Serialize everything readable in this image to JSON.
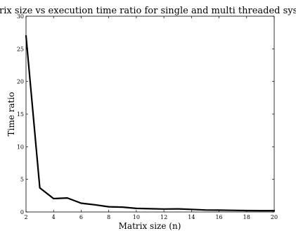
{
  "chart_data": {
    "type": "line",
    "title": "Matrix size vs execution time ratio for single and multi threaded systems",
    "xlabel": "Matrix size (n)",
    "ylabel": "Time ratio",
    "xlim": [
      2,
      20
    ],
    "ylim": [
      0,
      30
    ],
    "xticks": [
      "2",
      "4",
      "6",
      "8",
      "10",
      "12",
      "14",
      "16",
      "18",
      "20"
    ],
    "yticks": [
      "0",
      "5",
      "10",
      "15",
      "20",
      "25",
      "30"
    ],
    "grid": false,
    "legend": "none",
    "series": [
      {
        "color": "#000000",
        "x": [
          2,
          3,
          4,
          5,
          6,
          7,
          8,
          9,
          10,
          11,
          12,
          13,
          14,
          15,
          16,
          17,
          18,
          19,
          20
        ],
        "y": [
          27.0,
          3.7,
          2.05,
          2.15,
          1.35,
          1.1,
          0.8,
          0.75,
          0.55,
          0.5,
          0.45,
          0.48,
          0.4,
          0.3,
          0.28,
          0.25,
          0.22,
          0.2,
          0.2
        ]
      }
    ]
  }
}
